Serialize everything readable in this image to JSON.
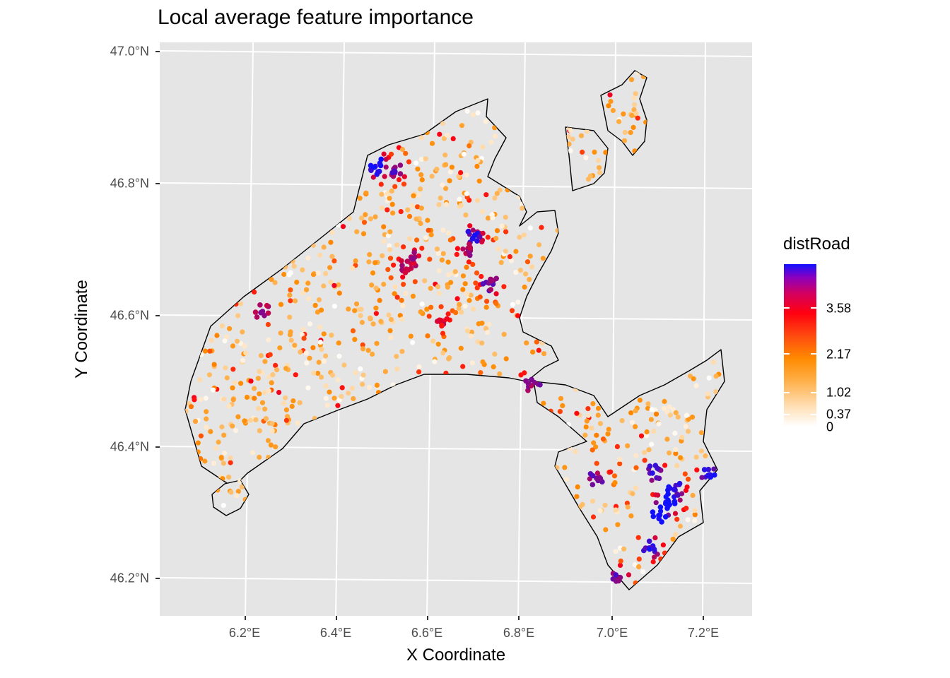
{
  "title": "Local average feature importance",
  "axes": {
    "xlabel": "X Coordinate",
    "ylabel": "Y Coordinate",
    "x_ticks": [
      "6.2°E",
      "6.4°E",
      "6.6°E",
      "6.8°E",
      "7.0°E",
      "7.2°E"
    ],
    "y_ticks": [
      "47.0°N",
      "46.8°N",
      "46.6°N",
      "46.4°N",
      "46.2°N"
    ]
  },
  "legend": {
    "title": "distRoad",
    "labels": [
      "3.58",
      "2.17",
      "1.02",
      "0.37",
      "0"
    ]
  },
  "chart_data": {
    "type": "scatter",
    "title": "Local average feature importance",
    "xlabel": "X Coordinate",
    "ylabel": "Y Coordinate",
    "xlim": [
      6.02,
      7.31
    ],
    "ylim": [
      46.14,
      47.01
    ],
    "color_variable": "distRoad",
    "color_scale": {
      "breaks": [
        0,
        0.37,
        1.02,
        2.17,
        3.58
      ],
      "max": 4.5,
      "colors": [
        "#ffffff",
        "#ffb04a",
        "#ff8a00",
        "#ff0010",
        "#1010ff"
      ]
    },
    "background": "#e5e5e5",
    "grid": true,
    "legend_position": "right",
    "hotspots": [
      {
        "x": 6.49,
        "y": 46.825,
        "value": 3.9
      },
      {
        "x": 6.53,
        "y": 46.82,
        "value": 3.3
      },
      {
        "x": 6.7,
        "y": 46.715,
        "value": 3.7
      },
      {
        "x": 6.69,
        "y": 46.7,
        "value": 3.0
      },
      {
        "x": 6.74,
        "y": 46.645,
        "value": 3.2
      },
      {
        "x": 6.24,
        "y": 46.605,
        "value": 3.1
      },
      {
        "x": 6.57,
        "y": 46.685,
        "value": 2.9
      },
      {
        "x": 6.55,
        "y": 46.67,
        "value": 3.0
      },
      {
        "x": 6.63,
        "y": 46.59,
        "value": 2.6
      },
      {
        "x": 7.13,
        "y": 46.315,
        "value": 4.5
      },
      {
        "x": 7.11,
        "y": 46.295,
        "value": 4.0
      },
      {
        "x": 7.14,
        "y": 46.335,
        "value": 3.8
      },
      {
        "x": 7.22,
        "y": 46.355,
        "value": 3.8
      },
      {
        "x": 7.09,
        "y": 46.245,
        "value": 3.6
      },
      {
        "x": 7.02,
        "y": 46.2,
        "value": 3.3
      },
      {
        "x": 7.1,
        "y": 46.36,
        "value": 3.5
      },
      {
        "x": 6.97,
        "y": 46.35,
        "value": 3.3
      },
      {
        "x": 6.83,
        "y": 46.495,
        "value": 3.2
      }
    ]
  }
}
